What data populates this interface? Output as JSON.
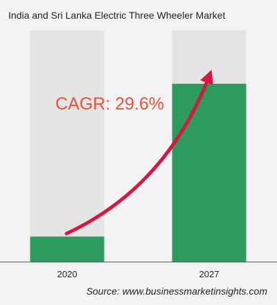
{
  "title": "India and Sri Lanka Electric Three Wheeler Market",
  "source": "Source: www.businessmarketinsights.com",
  "annotation": "CAGR: 29.6%",
  "colors": {
    "background": "#f3f3f3",
    "track": "#e4e4e4",
    "bar": "#2e9b5e",
    "arrow": "#d8163f",
    "cagr_text": "#e5533f",
    "axis": "#555555"
  },
  "chart_data": {
    "type": "bar",
    "title": "India and Sri Lanka Electric Three Wheeler Market",
    "categories": [
      "2020",
      "2027"
    ],
    "values": [
      11,
      77
    ],
    "ylim": [
      0,
      100
    ],
    "xlabel": "",
    "ylabel": "",
    "grid": false,
    "legend": "none"
  }
}
